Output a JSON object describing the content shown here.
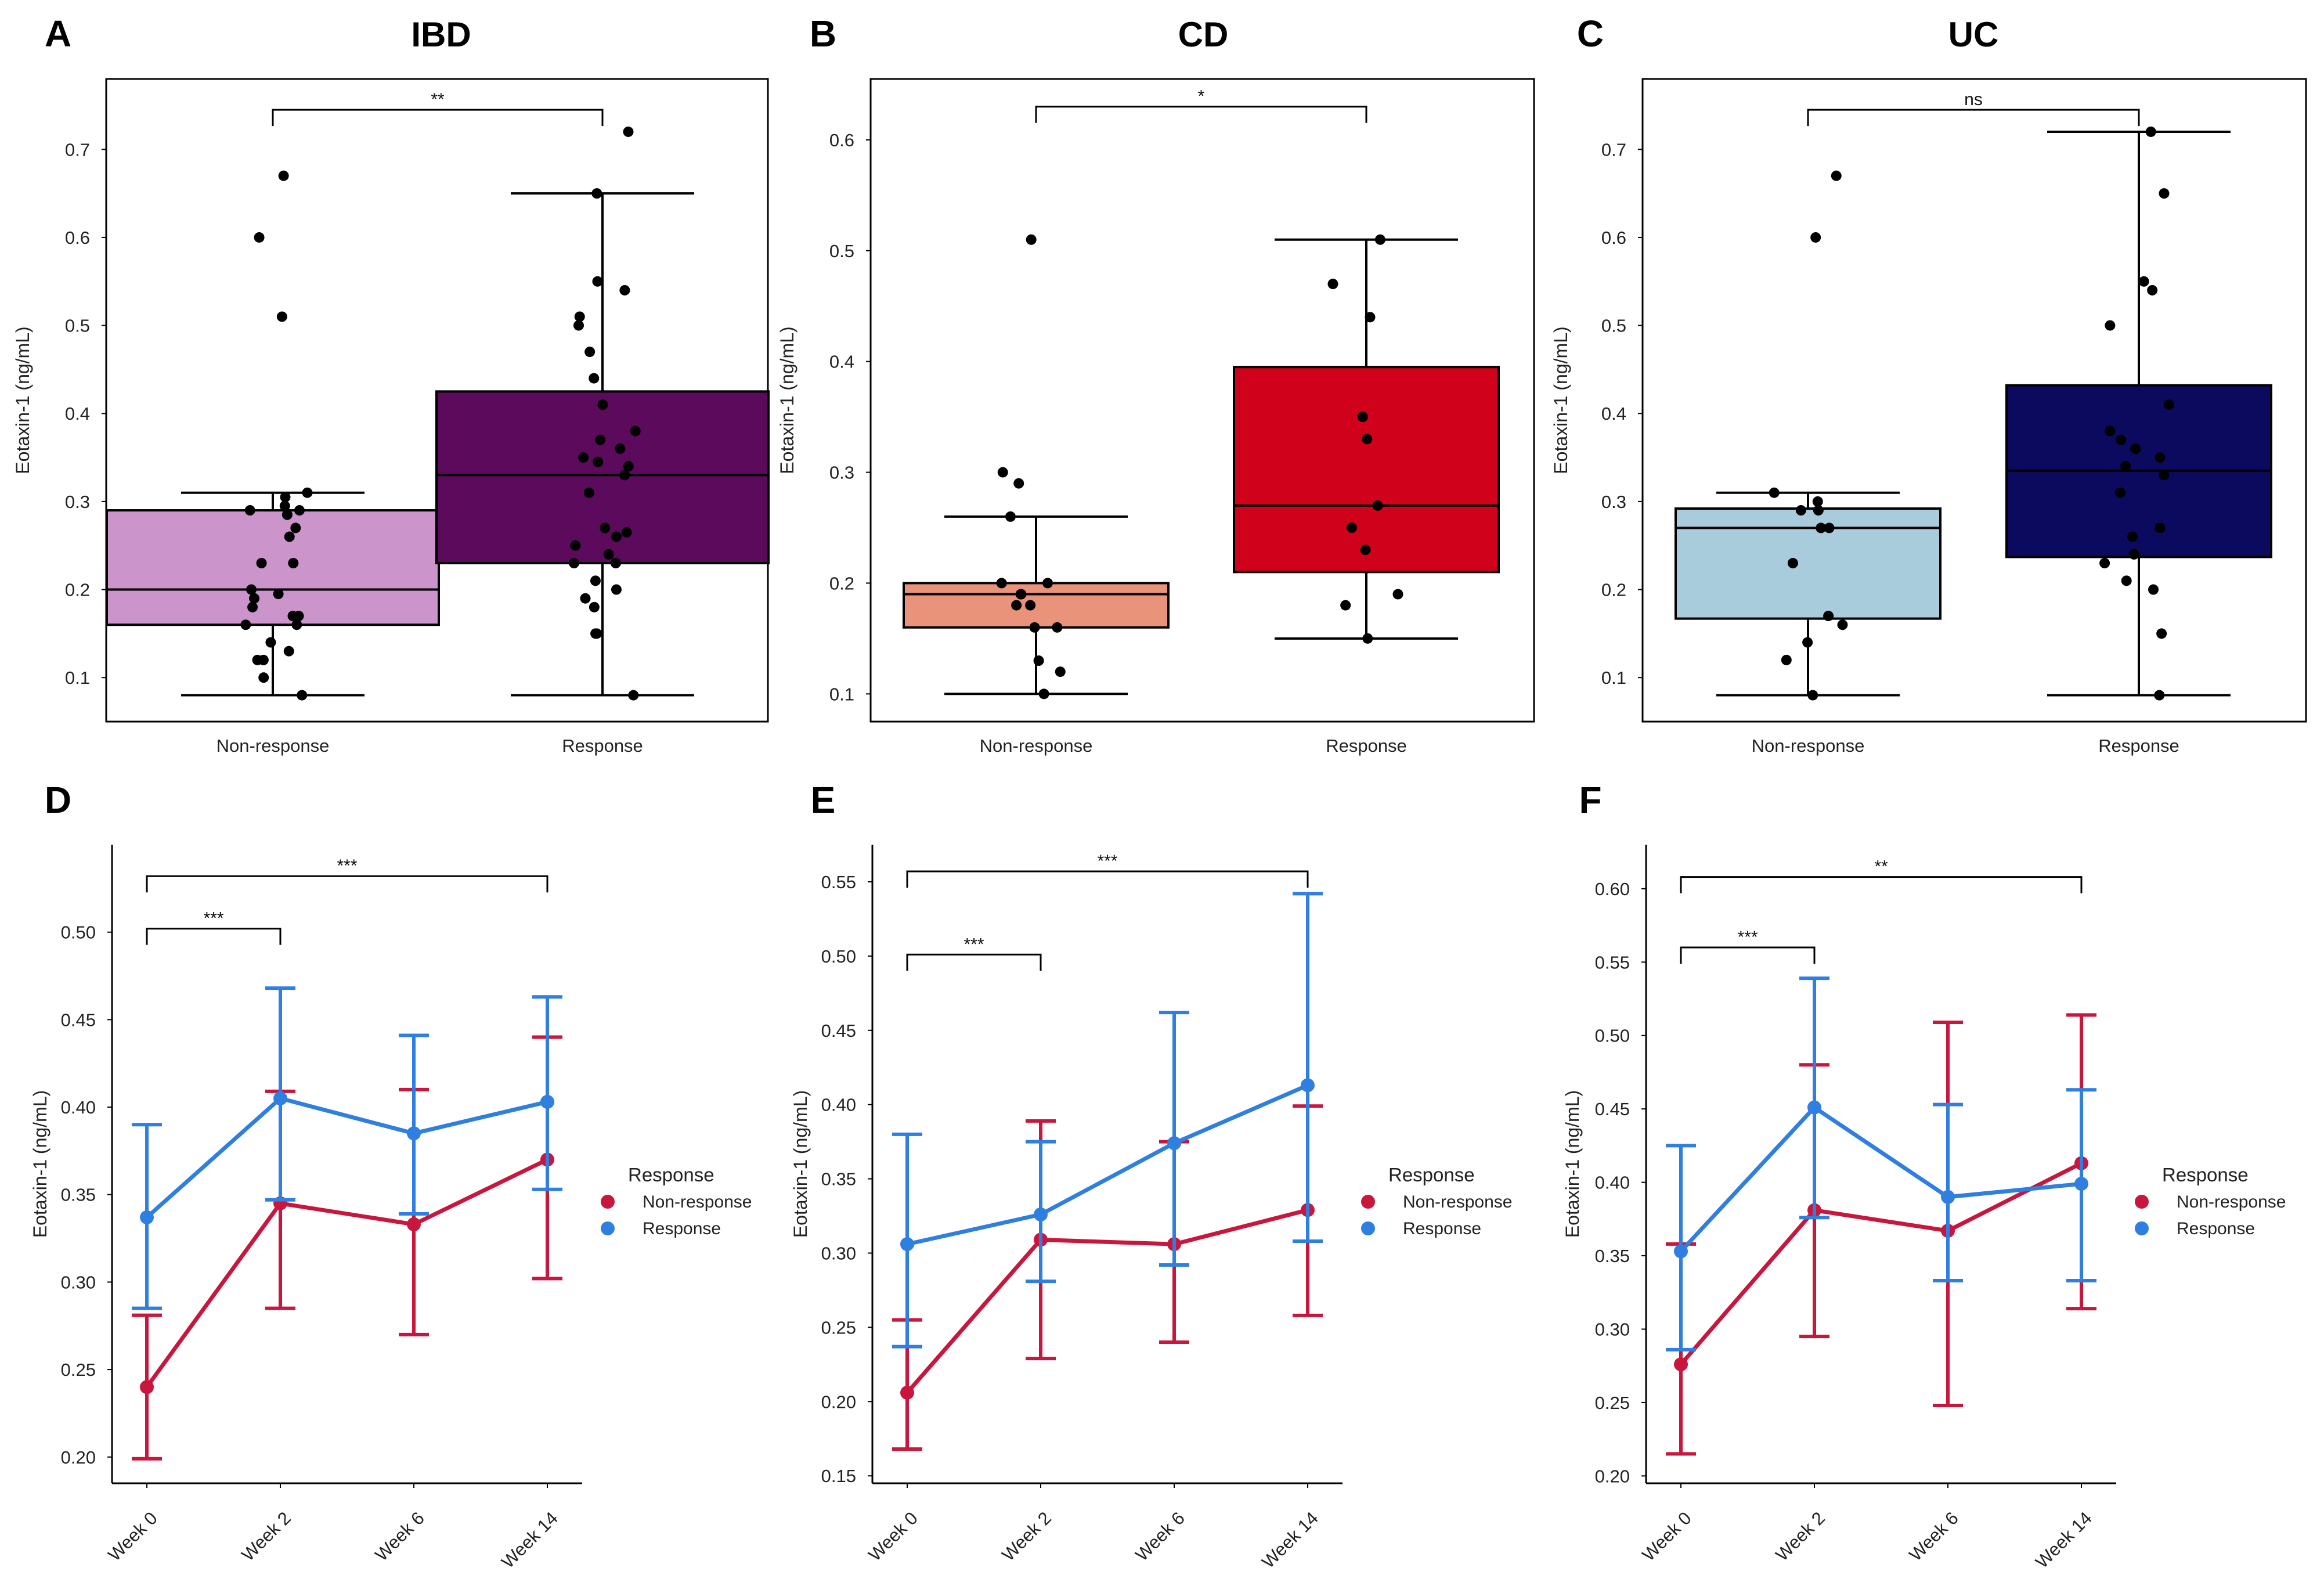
{
  "chart_data": [
    {
      "panel": "A",
      "title": "IBD",
      "type": "box",
      "ylabel": "Eotaxin-1 (ng/mL)",
      "ylim": [
        0.05,
        0.78
      ],
      "yticks": [
        0.1,
        0.2,
        0.3,
        0.4,
        0.5,
        0.6,
        0.7
      ],
      "categories": [
        "Non-response",
        "Response"
      ],
      "colors": [
        "#cb95cb",
        "#5b0a5c"
      ],
      "boxes": [
        {
          "q1": 0.16,
          "median": 0.2,
          "q3": 0.29,
          "whisker_low": 0.08,
          "whisker_high": 0.31
        },
        {
          "q1": 0.23,
          "median": 0.33,
          "q3": 0.425,
          "whisker_low": 0.08,
          "whisker_high": 0.65
        }
      ],
      "points": [
        [
          0.67,
          0.6,
          0.51,
          0.31,
          0.305,
          0.295,
          0.29,
          0.29,
          0.285,
          0.27,
          0.26,
          0.23,
          0.23,
          0.2,
          0.195,
          0.19,
          0.18,
          0.17,
          0.17,
          0.16,
          0.16,
          0.14,
          0.13,
          0.12,
          0.12,
          0.1,
          0.08
        ],
        [
          0.72,
          0.65,
          0.55,
          0.54,
          0.51,
          0.5,
          0.47,
          0.44,
          0.41,
          0.38,
          0.37,
          0.36,
          0.35,
          0.345,
          0.34,
          0.33,
          0.31,
          0.27,
          0.265,
          0.26,
          0.25,
          0.24,
          0.23,
          0.23,
          0.21,
          0.2,
          0.19,
          0.18,
          0.15,
          0.15,
          0.08
        ]
      ],
      "comparison": {
        "from": 0,
        "to": 1,
        "label": "**",
        "y": 0.745
      }
    },
    {
      "panel": "B",
      "title": "CD",
      "type": "box",
      "ylabel": "Eotaxin-1 (ng/mL)",
      "ylim": [
        0.075,
        0.655
      ],
      "yticks": [
        0.1,
        0.2,
        0.3,
        0.4,
        0.5,
        0.6
      ],
      "categories": [
        "Non-response",
        "Response"
      ],
      "colors": [
        "#e8937a",
        "#d0021b"
      ],
      "boxes": [
        {
          "q1": 0.16,
          "median": 0.19,
          "q3": 0.2,
          "whisker_low": 0.1,
          "whisker_high": 0.26
        },
        {
          "q1": 0.21,
          "median": 0.27,
          "q3": 0.395,
          "whisker_low": 0.15,
          "whisker_high": 0.51
        }
      ],
      "points": [
        [
          0.51,
          0.3,
          0.29,
          0.26,
          0.2,
          0.2,
          0.19,
          0.19,
          0.18,
          0.18,
          0.16,
          0.16,
          0.13,
          0.12,
          0.1
        ],
        [
          0.51,
          0.47,
          0.44,
          0.35,
          0.33,
          0.27,
          0.25,
          0.23,
          0.19,
          0.18,
          0.15
        ]
      ],
      "comparison": {
        "from": 0,
        "to": 1,
        "label": "*",
        "y": 0.63
      }
    },
    {
      "panel": "C",
      "title": "UC",
      "type": "box",
      "ylabel": "Eotaxin-1 (ng/mL)",
      "ylim": [
        0.05,
        0.78
      ],
      "yticks": [
        0.1,
        0.2,
        0.3,
        0.4,
        0.5,
        0.6,
        0.7
      ],
      "categories": [
        "Non-response",
        "Response"
      ],
      "colors": [
        "#a8ccdc",
        "#0b0a5e"
      ],
      "boxes": [
        {
          "q1": 0.167,
          "median": 0.27,
          "q3": 0.292,
          "whisker_low": 0.08,
          "whisker_high": 0.31
        },
        {
          "q1": 0.237,
          "median": 0.335,
          "q3": 0.432,
          "whisker_low": 0.08,
          "whisker_high": 0.72
        }
      ],
      "points": [
        [
          0.67,
          0.6,
          0.31,
          0.3,
          0.29,
          0.29,
          0.27,
          0.27,
          0.23,
          0.17,
          0.16,
          0.14,
          0.12,
          0.08
        ],
        [
          0.72,
          0.65,
          0.55,
          0.54,
          0.5,
          0.41,
          0.38,
          0.37,
          0.36,
          0.35,
          0.34,
          0.33,
          0.31,
          0.27,
          0.26,
          0.24,
          0.23,
          0.21,
          0.2,
          0.15,
          0.08
        ]
      ],
      "comparison": {
        "from": 0,
        "to": 1,
        "label": "ns",
        "y": 0.745
      }
    },
    {
      "panel": "D",
      "type": "line",
      "ylabel": "Eotaxin-1 (ng/mL)",
      "ylim": [
        0.185,
        0.55
      ],
      "yticks": [
        0.2,
        0.25,
        0.3,
        0.35,
        0.4,
        0.45,
        0.5
      ],
      "x": [
        "Week 0",
        "Week 2",
        "Week 6",
        "Week 14"
      ],
      "series": [
        {
          "name": "Non-response",
          "color": "#c8163c",
          "values": [
            0.24,
            0.345,
            0.333,
            0.37
          ],
          "err_low": [
            0.199,
            0.285,
            0.27,
            0.302
          ],
          "err_high": [
            0.281,
            0.409,
            0.41,
            0.44
          ]
        },
        {
          "name": "Response",
          "color": "#2f7fe0",
          "values": [
            0.337,
            0.405,
            0.385,
            0.403
          ],
          "err_low": [
            0.285,
            0.347,
            0.339,
            0.353
          ],
          "err_high": [
            0.39,
            0.468,
            0.441,
            0.463
          ]
        }
      ],
      "comparisons": [
        {
          "from": 0,
          "to": 1,
          "label": "***",
          "y": 0.502
        },
        {
          "from": 0,
          "to": 3,
          "label": "***",
          "y": 0.532
        }
      ],
      "legend_title": "Response"
    },
    {
      "panel": "E",
      "type": "line",
      "ylabel": "Eotaxin-1 (ng/mL)",
      "ylim": [
        0.145,
        0.575
      ],
      "yticks": [
        0.15,
        0.2,
        0.25,
        0.3,
        0.35,
        0.4,
        0.45,
        0.5,
        0.55
      ],
      "x": [
        "Week 0",
        "Week 2",
        "Week 6",
        "Week 14"
      ],
      "series": [
        {
          "name": "Non-response",
          "color": "#c8163c",
          "values": [
            0.206,
            0.309,
            0.306,
            0.329
          ],
          "err_low": [
            0.168,
            0.229,
            0.24,
            0.258
          ],
          "err_high": [
            0.255,
            0.389,
            0.375,
            0.399
          ]
        },
        {
          "name": "Response",
          "color": "#2f7fe0",
          "values": [
            0.306,
            0.326,
            0.374,
            0.413
          ],
          "err_low": [
            0.237,
            0.281,
            0.292,
            0.308
          ],
          "err_high": [
            0.38,
            0.375,
            0.462,
            0.542
          ]
        }
      ],
      "comparisons": [
        {
          "from": 0,
          "to": 1,
          "label": "***",
          "y": 0.501
        },
        {
          "from": 0,
          "to": 3,
          "label": "***",
          "y": 0.557
        }
      ],
      "legend_title": "Response"
    },
    {
      "panel": "F",
      "type": "line",
      "ylabel": "Eotaxin-1 (ng/mL)",
      "ylim": [
        0.195,
        0.63
      ],
      "yticks": [
        0.2,
        0.25,
        0.3,
        0.35,
        0.4,
        0.45,
        0.5,
        0.55,
        0.6
      ],
      "x": [
        "Week 0",
        "Week 2",
        "Week 6",
        "Week 14"
      ],
      "series": [
        {
          "name": "Non-response",
          "color": "#c8163c",
          "values": [
            0.276,
            0.381,
            0.367,
            0.413
          ],
          "err_low": [
            0.215,
            0.295,
            0.248,
            0.314
          ],
          "err_high": [
            0.358,
            0.48,
            0.509,
            0.514
          ]
        },
        {
          "name": "Response",
          "color": "#2f7fe0",
          "values": [
            0.353,
            0.451,
            0.39,
            0.399
          ],
          "err_low": [
            0.286,
            0.376,
            0.333,
            0.333
          ],
          "err_high": [
            0.425,
            0.539,
            0.453,
            0.463
          ]
        }
      ],
      "comparisons": [
        {
          "from": 0,
          "to": 1,
          "label": "***",
          "y": 0.56
        },
        {
          "from": 0,
          "to": 3,
          "label": "**",
          "y": 0.608
        }
      ],
      "legend_title": "Response"
    }
  ]
}
